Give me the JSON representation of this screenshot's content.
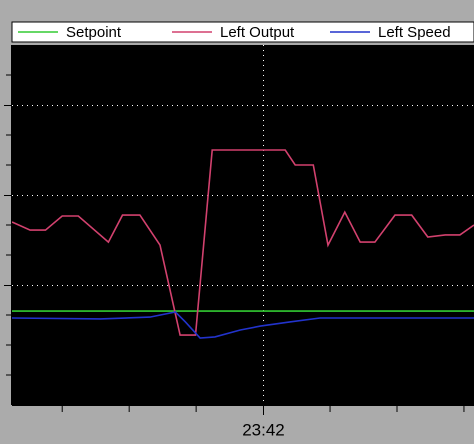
{
  "chart_data": {
    "type": "line",
    "legend": "top",
    "grid": true,
    "xlim": [
      -3.75,
      3.15
    ],
    "xticks": [
      {
        "value": 0,
        "label": "23:42"
      }
    ],
    "minor_xticks": [
      -3,
      -2,
      -1,
      1,
      2,
      3
    ],
    "ylim": [
      0,
      12
    ],
    "yticks": [
      4,
      7,
      10
    ],
    "minor_yticks": [
      1,
      2,
      3,
      5,
      6,
      8,
      9,
      11
    ],
    "series": [
      {
        "name": "Setpoint",
        "color": "#33cc33",
        "x": [
          -3.75,
          3.15
        ],
        "values": [
          3.13,
          3.13
        ]
      },
      {
        "name": "Left Output",
        "color": "#d2416e",
        "x": [
          -3.75,
          -3.48,
          -3.25,
          -3.0,
          -2.76,
          -2.31,
          -2.1,
          -1.84,
          -1.54,
          -1.24,
          -1.01,
          -0.76,
          0.33,
          0.48,
          0.75,
          0.97,
          1.22,
          1.45,
          1.67,
          1.97,
          2.22,
          2.46,
          2.72,
          2.94,
          3.15
        ],
        "values": [
          6.1,
          5.83,
          5.83,
          6.3,
          6.3,
          5.43,
          6.33,
          6.33,
          5.33,
          2.33,
          2.33,
          8.5,
          8.5,
          8.0,
          8.0,
          5.33,
          6.43,
          5.43,
          5.43,
          6.33,
          6.33,
          5.6,
          5.67,
          5.67,
          6.0
        ]
      },
      {
        "name": "Left Speed",
        "color": "#2233cc",
        "x": [
          -3.75,
          -2.43,
          -1.69,
          -1.31,
          -1.16,
          -0.94,
          -0.72,
          -0.34,
          -0.04,
          0.4,
          0.85,
          3.15
        ],
        "values": [
          2.9,
          2.87,
          2.93,
          3.1,
          2.77,
          2.23,
          2.27,
          2.5,
          2.63,
          2.77,
          2.9,
          2.9
        ]
      }
    ]
  }
}
